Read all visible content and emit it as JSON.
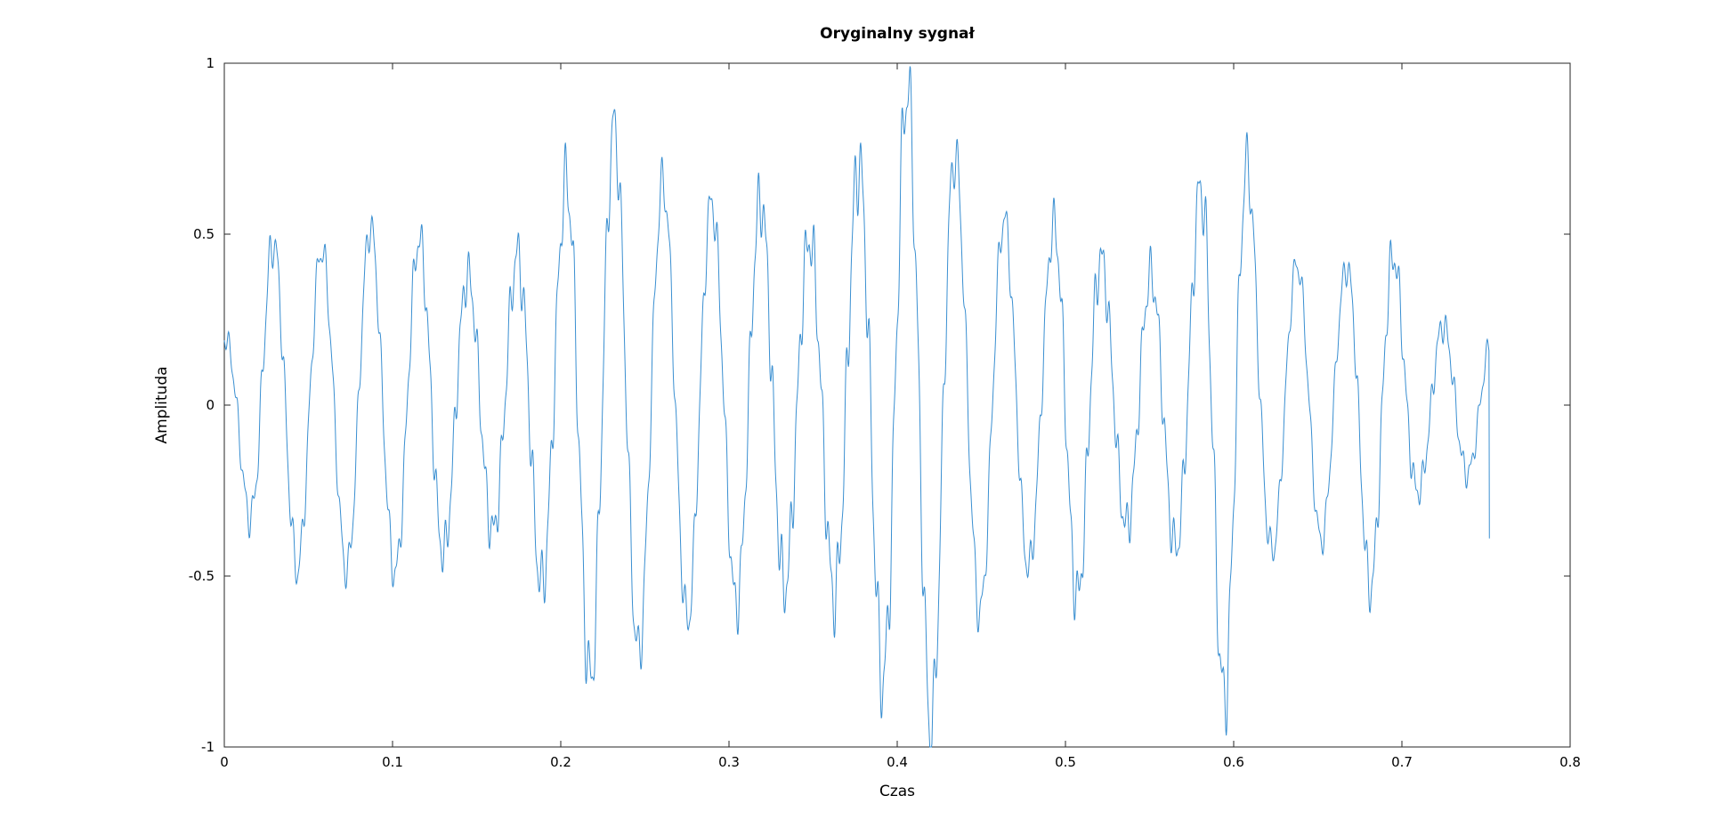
{
  "chart_data": {
    "type": "line",
    "title": "Oryginalny sygnał",
    "xlabel": "Czas",
    "ylabel": "Amplituda",
    "xlim": [
      0,
      0.8
    ],
    "ylim": [
      -1,
      1
    ],
    "xticks": [
      0,
      0.1,
      0.2,
      0.3,
      0.4,
      0.5,
      0.6,
      0.7,
      0.8
    ],
    "xtick_labels": [
      "0",
      "0.1",
      "0.2",
      "0.3",
      "0.4",
      "0.5",
      "0.6",
      "0.7",
      "0.8"
    ],
    "yticks": [
      -1,
      -0.5,
      0,
      0.5,
      1
    ],
    "ytick_labels": [
      "-1",
      "-0.5",
      "0",
      "0.5",
      "1"
    ],
    "grid": false,
    "series": [
      {
        "color": "#3a8fd1",
        "x_start": 0,
        "x_end": 0.752,
        "envelope": {
          "x": [
            0,
            0.03,
            0.06,
            0.09,
            0.12,
            0.16,
            0.19,
            0.22,
            0.26,
            0.29,
            0.32,
            0.35,
            0.385,
            0.415,
            0.445,
            0.48,
            0.505,
            0.535,
            0.565,
            0.595,
            0.625,
            0.66,
            0.685,
            0.715,
            0.752
          ],
          "y": [
            0.22,
            0.44,
            0.41,
            0.55,
            0.65,
            0.52,
            0.59,
            0.75,
            0.62,
            0.7,
            0.87,
            0.68,
            0.8,
            0.87,
            0.58,
            0.56,
            0.82,
            0.5,
            0.47,
            0.8,
            0.38,
            0.42,
            0.73,
            0.35,
            0.22
          ]
        },
        "dominant_frequency_hz": 34.5,
        "components": [
          {
            "freq": 34.5,
            "amp": 1.0
          },
          {
            "freq": 210,
            "amp": 0.11
          },
          {
            "freq": 365,
            "amp": 0.06
          }
        ],
        "end_value": -0.39
      }
    ]
  }
}
